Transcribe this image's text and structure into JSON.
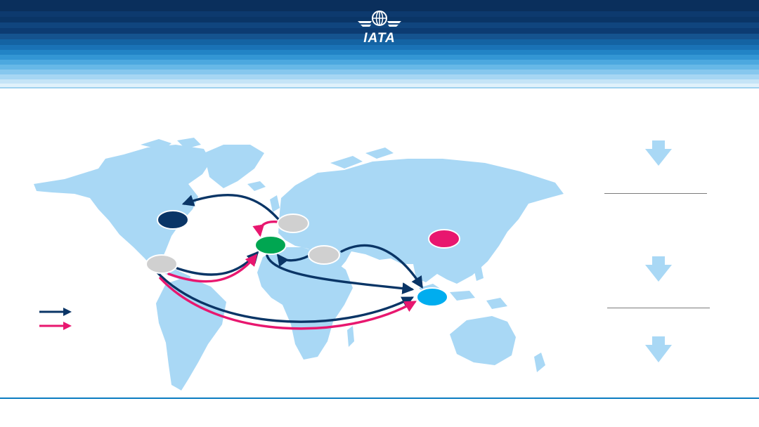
{
  "header": {
    "logo": {
      "text": "IATA",
      "icon": "globe-wings-icon"
    },
    "colors": {
      "dark": "#0a3566",
      "mid": "#1664a3",
      "light": "#7cc3ec"
    }
  },
  "map": {
    "land_color": "#a9d8f5",
    "nodes": [
      {
        "id": "north-america",
        "color": "#0a3566"
      },
      {
        "id": "europe-north",
        "color": "#d0d0d0"
      },
      {
        "id": "europe-hub",
        "color": "#00a651"
      },
      {
        "id": "middle-east",
        "color": "#d0d0d0"
      },
      {
        "id": "central-america",
        "color": "#d0d0d0"
      },
      {
        "id": "china",
        "color": "#e8176f"
      },
      {
        "id": "southeast-asia",
        "color": "#00adef"
      }
    ],
    "route_colors": {
      "navy": "#0a3566",
      "pink": "#e8176f"
    }
  },
  "legend": {
    "navy_arrow_color": "#0a3566",
    "pink_arrow_color": "#e8176f"
  },
  "sidebar": {
    "arrow_color": "#a9d8f5"
  }
}
